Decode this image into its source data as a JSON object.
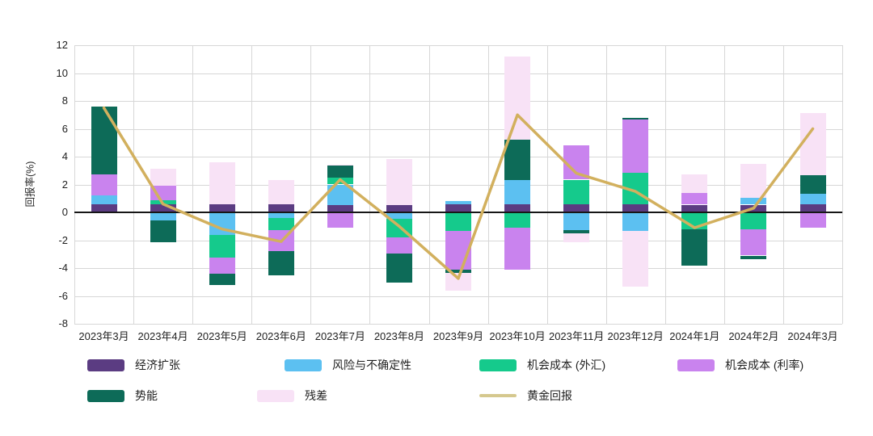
{
  "chart_data": {
    "type": "stacked-bar-with-line",
    "title": "",
    "ylabel": "回报率(%)",
    "xlabel": "",
    "ylim": [
      -8,
      12
    ],
    "ytick_step": 2,
    "grid": true,
    "legend_position": "bottom",
    "categories": [
      "2023年3月",
      "2023年4月",
      "2023年5月",
      "2023年6月",
      "2023年7月",
      "2023年8月",
      "2023年9月",
      "2023年10月",
      "2023年11月",
      "2023年12月",
      "2024年1月",
      "2024年2月",
      "2024年3月"
    ],
    "series": [
      {
        "name": "经济扩张",
        "color": "#5b3c82",
        "values": [
          0.6,
          0.6,
          0.6,
          0.6,
          0.55,
          0.5,
          0.6,
          0.6,
          0.6,
          0.6,
          0.55,
          0.55,
          0.6
        ]
      },
      {
        "name": "风险与不确定性",
        "color": "#5cc0f1",
        "values": [
          0.6,
          -0.55,
          -1.6,
          -0.4,
          1.45,
          -0.45,
          0.2,
          1.7,
          -1.3,
          -1.35,
          0,
          0.5,
          0.75
        ]
      },
      {
        "name": "机会成本 (外汇)",
        "color": "#15ca8c",
        "values": [
          0,
          0.25,
          -1.65,
          -0.85,
          0.5,
          -1.35,
          -1.35,
          -1.1,
          1.75,
          2.25,
          -1.2,
          -1.2,
          0
        ]
      },
      {
        "name": "机会成本 (利率)",
        "color": "#c983ee",
        "values": [
          1.55,
          1.05,
          -1.15,
          -1.55,
          -1.1,
          -1.15,
          -2.75,
          -3.0,
          2.45,
          3.8,
          0.85,
          -1.9,
          -1.1
        ]
      },
      {
        "name": "势能",
        "color": "#0d6b58",
        "values": [
          4.85,
          -1.6,
          -0.8,
          -1.75,
          0.85,
          -2.1,
          -0.25,
          2.9,
          -0.2,
          0.15,
          -2.6,
          -0.25,
          1.3
        ]
      },
      {
        "name": "残差",
        "color": "#f8e2f6",
        "values": [
          0,
          1.25,
          3.0,
          1.75,
          0.1,
          3.35,
          -1.25,
          6.0,
          -0.65,
          -4.0,
          1.35,
          2.45,
          4.5
        ]
      }
    ],
    "line_series": {
      "name": "黄金回报",
      "color": "#d2b05e",
      "legend_color": "#d5c88e",
      "values": [
        7.5,
        0.6,
        -1.2,
        -2.1,
        2.35,
        -1.0,
        -4.75,
        7.0,
        2.8,
        1.5,
        -1.1,
        0.3,
        6.0
      ]
    }
  }
}
